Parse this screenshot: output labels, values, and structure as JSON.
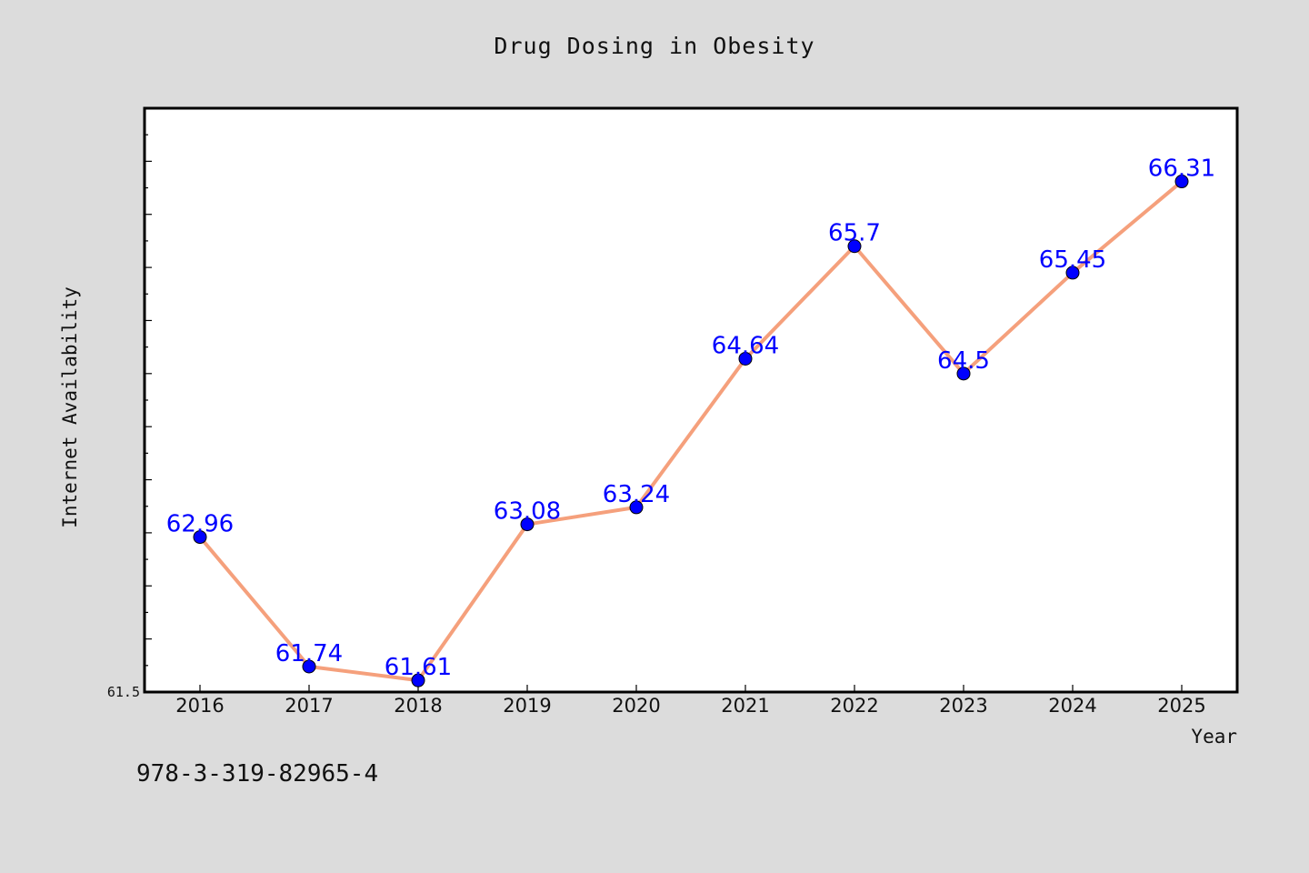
{
  "chart_data": {
    "type": "line",
    "title": "Drug Dosing in Obesity",
    "xlabel": "Year",
    "ylabel": "Internet Availability",
    "categories": [
      "2016",
      "2017",
      "2018",
      "2019",
      "2020",
      "2021",
      "2022",
      "2023",
      "2024",
      "2025"
    ],
    "series": [
      {
        "values": [
          62.96,
          61.74,
          61.61,
          63.08,
          63.24,
          64.64,
          65.7,
          64.5,
          65.45,
          66.31
        ],
        "line_color": "#f5a07c",
        "marker_color": "#0000ff",
        "label_color": "#0000ff"
      }
    ],
    "data_labels": [
      "62.96",
      "61.74",
      "61.61",
      "63.08",
      "63.24",
      "64.64",
      "65.7",
      "64.5",
      "65.45",
      "66.31"
    ],
    "ylim": [
      61.5,
      67.0
    ],
    "ytick_labels": [
      "61.5"
    ],
    "grid": false,
    "legend": "none"
  },
  "footer": {
    "isbn": "978-3-319-82965-4"
  },
  "colors": {
    "background": "#dcdcdc",
    "plot_background": "#ffffff",
    "axis": "#000000"
  }
}
